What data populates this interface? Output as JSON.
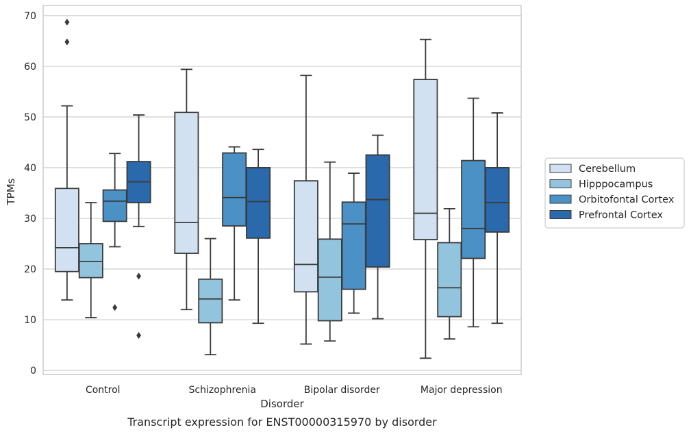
{
  "chart_data": {
    "type": "box",
    "caption": "Transcript expression for ENST00000315970 by disorder",
    "xlabel": "Disorder",
    "ylabel": "TPMs",
    "ylim": [
      -0.8,
      72
    ],
    "yticks": [
      0,
      10,
      20,
      30,
      40,
      50,
      60,
      70
    ],
    "grid": "horizontal",
    "legend": "right",
    "categories": [
      "Control",
      "Schizophrenia",
      "Bipolar disorder",
      "Major depression"
    ],
    "series": [
      {
        "name": "Cerebellum",
        "color": "#d1e1f1",
        "boxes": [
          {
            "whislo": 13.9,
            "q1": 19.5,
            "med": 24.2,
            "q3": 35.9,
            "whishi": 52.2,
            "fliers": [
              64.8,
              68.7
            ]
          },
          {
            "whislo": 12.0,
            "q1": 23.1,
            "med": 29.2,
            "q3": 50.9,
            "whishi": 59.4,
            "fliers": []
          },
          {
            "whislo": 5.2,
            "q1": 15.5,
            "med": 20.9,
            "q3": 37.4,
            "whishi": 58.2,
            "fliers": []
          },
          {
            "whislo": 2.4,
            "q1": 25.8,
            "med": 31.0,
            "q3": 57.4,
            "whishi": 65.3,
            "fliers": []
          }
        ]
      },
      {
        "name": "Hipppocampus",
        "color": "#93c4de",
        "boxes": [
          {
            "whislo": 10.4,
            "q1": 18.3,
            "med": 21.5,
            "q3": 25.0,
            "whishi": 33.1,
            "fliers": []
          },
          {
            "whislo": 3.1,
            "q1": 9.4,
            "med": 14.1,
            "q3": 18.0,
            "whishi": 26.0,
            "fliers": []
          },
          {
            "whislo": 5.8,
            "q1": 9.8,
            "med": 18.4,
            "q3": 25.9,
            "whishi": 41.1,
            "fliers": []
          },
          {
            "whislo": 6.2,
            "q1": 10.6,
            "med": 16.3,
            "q3": 25.2,
            "whishi": 31.9,
            "fliers": []
          }
        ]
      },
      {
        "name": "Orbitofontal Cortex",
        "color": "#4c91c5",
        "boxes": [
          {
            "whislo": 24.4,
            "q1": 29.4,
            "med": 33.4,
            "q3": 35.6,
            "whishi": 42.8,
            "fliers": [
              12.4
            ]
          },
          {
            "whislo": 13.9,
            "q1": 28.5,
            "med": 34.1,
            "q3": 42.9,
            "whishi": 44.1,
            "fliers": []
          },
          {
            "whislo": 11.3,
            "q1": 16.0,
            "med": 28.9,
            "q3": 33.2,
            "whishi": 38.9,
            "fliers": []
          },
          {
            "whislo": 8.6,
            "q1": 22.1,
            "med": 28.0,
            "q3": 41.4,
            "whishi": 53.7,
            "fliers": []
          }
        ]
      },
      {
        "name": "Prefrontal Cortex",
        "color": "#2a69ab",
        "boxes": [
          {
            "whislo": 28.4,
            "q1": 33.1,
            "med": 37.2,
            "q3": 41.2,
            "whishi": 50.4,
            "fliers": [
              18.6,
              6.9
            ]
          },
          {
            "whislo": 9.3,
            "q1": 26.1,
            "med": 33.3,
            "q3": 40.0,
            "whishi": 43.6,
            "fliers": []
          },
          {
            "whislo": 10.2,
            "q1": 20.4,
            "med": 33.7,
            "q3": 42.5,
            "whishi": 46.4,
            "fliers": []
          },
          {
            "whislo": 9.3,
            "q1": 27.3,
            "med": 33.1,
            "q3": 40.0,
            "whishi": 50.8,
            "fliers": []
          }
        ]
      }
    ]
  }
}
